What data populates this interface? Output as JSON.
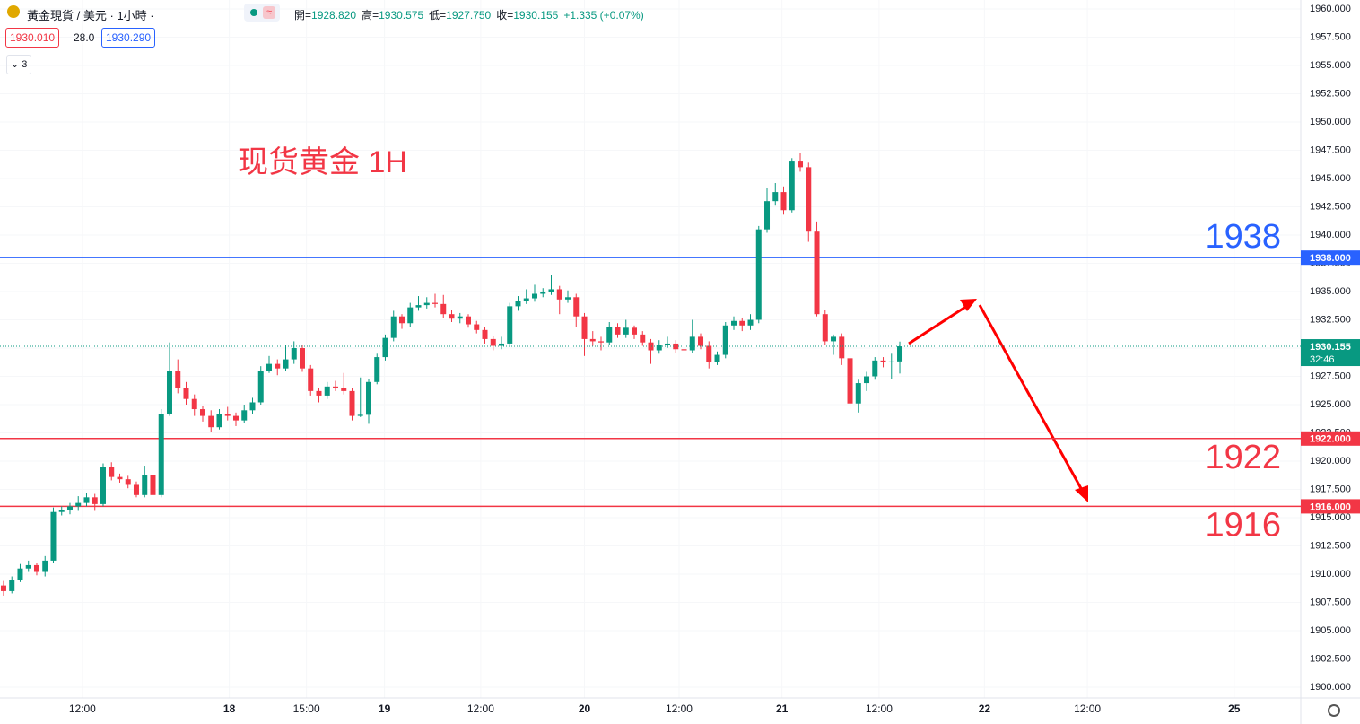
{
  "header": {
    "symbol": "黃金現貨",
    "separator": "/",
    "details": "美元 · 1小時 ·",
    "ohlc": [
      {
        "label": "開=",
        "value": "1928.820"
      },
      {
        "label": "高=",
        "value": "1930.575"
      },
      {
        "label": "低=",
        "value": "1927.750"
      },
      {
        "label": "收=",
        "value": "1930.155"
      }
    ],
    "change": "+1.335 (+0.07%)",
    "bid": "1930.010",
    "spread": "28.0",
    "ask": "1930.290",
    "indicators": "3"
  },
  "chart_data": {
    "type": "candlestick",
    "title": "现货黄金 1H",
    "up_color": "#089981",
    "down_color": "#f23645",
    "xlim": [
      -0.43,
      156.32
    ],
    "ylim": [
      1899.05,
      1960.79
    ],
    "grid": true,
    "xticks": [
      {
        "value": 9.5,
        "label": "12:00"
      },
      {
        "value": 27.2,
        "label": "18"
      },
      {
        "value": 36.5,
        "label": "15:00"
      },
      {
        "value": 45.9,
        "label": "19"
      },
      {
        "value": 57.5,
        "label": "12:00"
      },
      {
        "value": 70,
        "label": "20"
      },
      {
        "value": 81.4,
        "label": "12:00"
      },
      {
        "value": 93.8,
        "label": "21"
      },
      {
        "value": 105.5,
        "label": "12:00"
      },
      {
        "value": 118.2,
        "label": "22"
      },
      {
        "value": 130.6,
        "label": "12:00"
      },
      {
        "value": 148.3,
        "label": "25"
      }
    ],
    "yticks": [
      {
        "value": 1900,
        "label": "1900.000"
      },
      {
        "value": 1902.5,
        "label": "1902.500"
      },
      {
        "value": 1905,
        "label": "1905.000"
      },
      {
        "value": 1907.5,
        "label": "1907.500"
      },
      {
        "value": 1910,
        "label": "1910.000"
      },
      {
        "value": 1912.5,
        "label": "1912.500"
      },
      {
        "value": 1915,
        "label": "1915.000"
      },
      {
        "value": 1917.5,
        "label": "1917.500"
      },
      {
        "value": 1920,
        "label": "1920.000"
      },
      {
        "value": 1922.5,
        "label": "1922.500"
      },
      {
        "value": 1925,
        "label": "1925.000"
      },
      {
        "value": 1927.5,
        "label": "1927.500"
      },
      {
        "value": 1930,
        "label": "1930.000"
      },
      {
        "value": 1932.5,
        "label": "1932.500"
      },
      {
        "value": 1935,
        "label": "1935.000"
      },
      {
        "value": 1937.5,
        "label": "1937.500"
      },
      {
        "value": 1940,
        "label": "1940.000"
      },
      {
        "value": 1942.5,
        "label": "1942.500"
      },
      {
        "value": 1945,
        "label": "1945.000"
      },
      {
        "value": 1947.5,
        "label": "1947.500"
      },
      {
        "value": 1950,
        "label": "1950.000"
      },
      {
        "value": 1952.5,
        "label": "1952.500"
      },
      {
        "value": 1955,
        "label": "1955.000"
      },
      {
        "value": 1957.5,
        "label": "1957.500"
      },
      {
        "value": 1960,
        "label": "1960.000"
      }
    ],
    "levels": [
      {
        "value": 1938,
        "tag": "1938.000",
        "color": "#2962ff"
      },
      {
        "value": 1922,
        "tag": "1922.000",
        "color": "#f23645"
      },
      {
        "value": 1916,
        "tag": "1916.000",
        "color": "#f23645"
      }
    ],
    "last_price": {
      "value": 1930.155,
      "countdown": "32:46",
      "color": "#089981"
    },
    "candles": [
      [
        1909.0,
        1909.4,
        1908.1,
        1908.5
      ],
      [
        1908.5,
        1909.8,
        1908.3,
        1909.5
      ],
      [
        1909.5,
        1910.9,
        1909.3,
        1910.5
      ],
      [
        1910.5,
        1911.2,
        1910.2,
        1910.8
      ],
      [
        1910.8,
        1911.0,
        1909.9,
        1910.2
      ],
      [
        1910.2,
        1911.6,
        1909.8,
        1911.2
      ],
      [
        1911.2,
        1915.9,
        1911.0,
        1915.5
      ],
      [
        1915.5,
        1916.0,
        1915.2,
        1915.7
      ],
      [
        1915.7,
        1916.3,
        1915.3,
        1916.0
      ],
      [
        1916.0,
        1916.9,
        1915.6,
        1916.3
      ],
      [
        1916.3,
        1917.2,
        1916.0,
        1916.8
      ],
      [
        1916.8,
        1917.1,
        1915.6,
        1916.2
      ],
      [
        1916.2,
        1919.8,
        1916.0,
        1919.5
      ],
      [
        1919.5,
        1919.9,
        1918.3,
        1918.6
      ],
      [
        1918.6,
        1918.9,
        1918.1,
        1918.4
      ],
      [
        1918.4,
        1918.7,
        1917.6,
        1917.9
      ],
      [
        1917.9,
        1918.2,
        1916.8,
        1917.0
      ],
      [
        1917.0,
        1919.6,
        1916.8,
        1918.8
      ],
      [
        1918.8,
        1920.4,
        1916.6,
        1917.0
      ],
      [
        1917.0,
        1924.6,
        1916.8,
        1924.2
      ],
      [
        1924.2,
        1930.5,
        1924.0,
        1928.0
      ],
      [
        1928.0,
        1929.0,
        1926.0,
        1926.5
      ],
      [
        1926.5,
        1927.0,
        1925.0,
        1925.5
      ],
      [
        1925.5,
        1925.9,
        1924.0,
        1924.6
      ],
      [
        1924.6,
        1924.9,
        1923.5,
        1924.0
      ],
      [
        1924.0,
        1924.5,
        1922.6,
        1923.0
      ],
      [
        1923.0,
        1924.6,
        1922.8,
        1924.2
      ],
      [
        1924.2,
        1924.8,
        1923.6,
        1924.0
      ],
      [
        1924.0,
        1924.3,
        1923.1,
        1923.6
      ],
      [
        1923.6,
        1925.0,
        1923.4,
        1924.5
      ],
      [
        1924.5,
        1925.6,
        1924.2,
        1925.2
      ],
      [
        1925.2,
        1928.4,
        1925.0,
        1928.0
      ],
      [
        1928.0,
        1929.3,
        1927.8,
        1928.6
      ],
      [
        1928.6,
        1929.0,
        1927.6,
        1928.2
      ],
      [
        1928.2,
        1930.3,
        1928.0,
        1929.0
      ],
      [
        1929.0,
        1930.6,
        1928.6,
        1930.0
      ],
      [
        1930.0,
        1930.3,
        1927.9,
        1928.2
      ],
      [
        1928.2,
        1928.5,
        1925.8,
        1926.2
      ],
      [
        1926.2,
        1926.5,
        1925.2,
        1925.8
      ],
      [
        1925.8,
        1927.0,
        1925.5,
        1926.6
      ],
      [
        1926.6,
        1927.1,
        1926.2,
        1926.5
      ],
      [
        1926.5,
        1927.8,
        1925.9,
        1926.2
      ],
      [
        1926.2,
        1926.5,
        1923.6,
        1924.0
      ],
      [
        1924.0,
        1927.4,
        1923.9,
        1924.1
      ],
      [
        1924.1,
        1927.3,
        1923.3,
        1927.0
      ],
      [
        1927.0,
        1929.5,
        1926.8,
        1929.2
      ],
      [
        1929.2,
        1931.2,
        1928.9,
        1930.9
      ],
      [
        1930.9,
        1933.3,
        1930.6,
        1932.8
      ],
      [
        1932.8,
        1933.0,
        1931.7,
        1932.2
      ],
      [
        1932.2,
        1934.0,
        1931.9,
        1933.6
      ],
      [
        1933.6,
        1934.6,
        1933.3,
        1933.8
      ],
      [
        1933.8,
        1934.5,
        1933.5,
        1934.0
      ],
      [
        1934.0,
        1934.8,
        1933.6,
        1933.9
      ],
      [
        1933.9,
        1934.7,
        1932.7,
        1933.0
      ],
      [
        1933.0,
        1933.4,
        1932.3,
        1932.6
      ],
      [
        1932.6,
        1933.1,
        1932.2,
        1932.8
      ],
      [
        1932.8,
        1933.0,
        1931.8,
        1932.1
      ],
      [
        1932.1,
        1932.4,
        1931.3,
        1931.6
      ],
      [
        1931.6,
        1931.9,
        1930.4,
        1930.8
      ],
      [
        1930.8,
        1931.1,
        1929.8,
        1930.2
      ],
      [
        1930.2,
        1931.0,
        1929.9,
        1930.4
      ],
      [
        1930.4,
        1934.0,
        1930.3,
        1933.7
      ],
      [
        1933.7,
        1934.6,
        1933.3,
        1934.2
      ],
      [
        1934.2,
        1935.2,
        1933.9,
        1934.4
      ],
      [
        1934.4,
        1935.6,
        1934.1,
        1934.8
      ],
      [
        1934.8,
        1935.3,
        1934.5,
        1935.0
      ],
      [
        1935.0,
        1936.5,
        1934.7,
        1935.2
      ],
      [
        1935.2,
        1935.5,
        1933.0,
        1934.3
      ],
      [
        1934.3,
        1935.1,
        1934.0,
        1934.5
      ],
      [
        1934.5,
        1934.8,
        1931.9,
        1932.8
      ],
      [
        1932.8,
        1933.1,
        1929.3,
        1930.8
      ],
      [
        1930.8,
        1931.5,
        1930.2,
        1930.6
      ],
      [
        1930.6,
        1931.0,
        1929.8,
        1930.5
      ],
      [
        1930.5,
        1932.3,
        1930.3,
        1931.9
      ],
      [
        1931.9,
        1932.2,
        1930.9,
        1931.2
      ],
      [
        1931.2,
        1932.5,
        1930.9,
        1931.8
      ],
      [
        1931.8,
        1932.0,
        1930.8,
        1931.2
      ],
      [
        1931.2,
        1931.5,
        1930.2,
        1930.5
      ],
      [
        1930.5,
        1930.8,
        1928.6,
        1929.8
      ],
      [
        1929.8,
        1930.7,
        1929.5,
        1930.3
      ],
      [
        1930.3,
        1931.0,
        1930.0,
        1930.4
      ],
      [
        1930.4,
        1930.7,
        1929.6,
        1929.9
      ],
      [
        1929.9,
        1930.4,
        1929.3,
        1929.8
      ],
      [
        1929.8,
        1932.5,
        1929.6,
        1931.0
      ],
      [
        1931.0,
        1931.3,
        1929.9,
        1930.2
      ],
      [
        1930.2,
        1930.6,
        1928.2,
        1928.8
      ],
      [
        1928.8,
        1929.7,
        1928.5,
        1929.4
      ],
      [
        1929.4,
        1932.3,
        1929.1,
        1932.0
      ],
      [
        1932.0,
        1932.8,
        1931.6,
        1932.4
      ],
      [
        1932.4,
        1932.7,
        1931.5,
        1932.0
      ],
      [
        1932.0,
        1933.0,
        1931.6,
        1932.5
      ],
      [
        1932.5,
        1940.8,
        1932.2,
        1940.5
      ],
      [
        1940.5,
        1944.2,
        1940.2,
        1943.0
      ],
      [
        1943.0,
        1944.6,
        1942.6,
        1943.8
      ],
      [
        1943.8,
        1944.3,
        1941.8,
        1942.2
      ],
      [
        1942.2,
        1946.8,
        1942.0,
        1946.5
      ],
      [
        1946.5,
        1947.3,
        1945.6,
        1946.0
      ],
      [
        1946.0,
        1946.4,
        1939.4,
        1940.3
      ],
      [
        1940.3,
        1941.2,
        1932.8,
        1933.0
      ],
      [
        1933.0,
        1933.4,
        1930.3,
        1930.6
      ],
      [
        1930.6,
        1931.2,
        1929.4,
        1931.0
      ],
      [
        1931.0,
        1931.3,
        1928.5,
        1929.1
      ],
      [
        1929.1,
        1929.3,
        1924.6,
        1925.1
      ],
      [
        1925.1,
        1927.2,
        1924.3,
        1926.9
      ],
      [
        1926.9,
        1927.9,
        1926.2,
        1927.5
      ],
      [
        1927.5,
        1929.2,
        1927.2,
        1928.9
      ],
      [
        1928.9,
        1929.2,
        1928.3,
        1928.8
      ],
      [
        1928.8,
        1929.5,
        1927.3,
        1928.82
      ],
      [
        1928.82,
        1930.575,
        1927.75,
        1930.155
      ]
    ]
  }
}
